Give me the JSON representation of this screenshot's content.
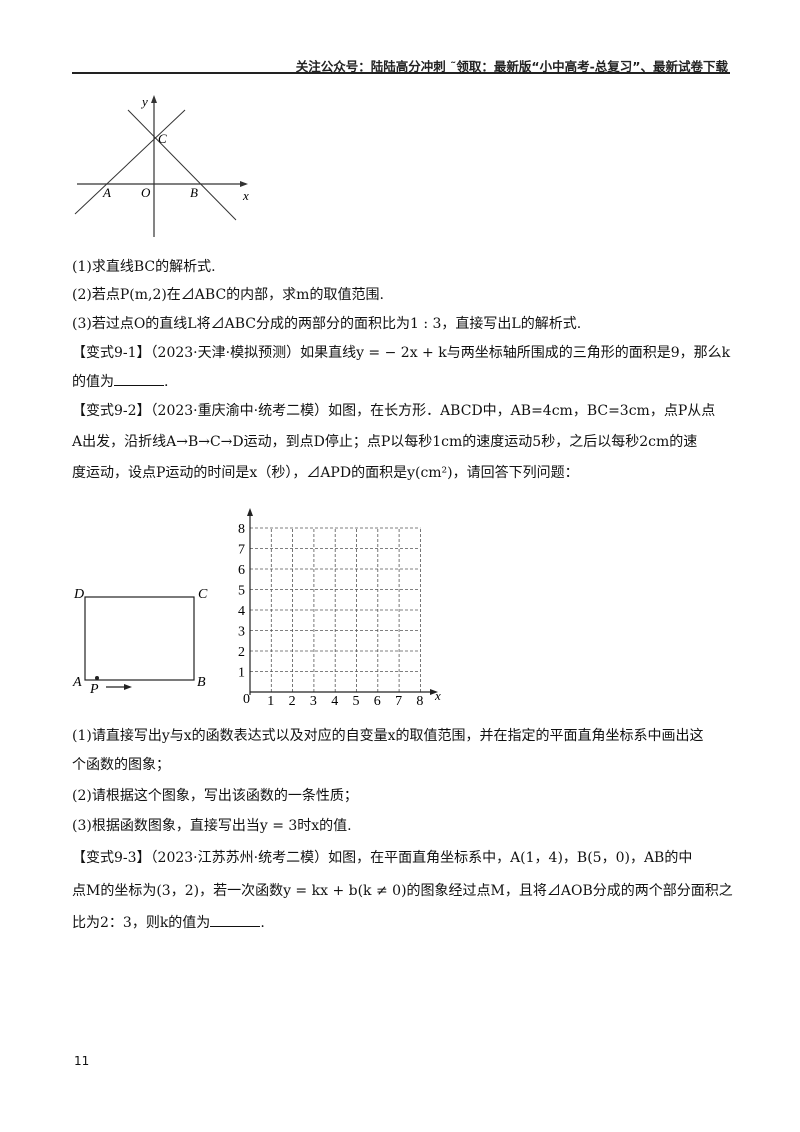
{
  "header": {
    "text": "关注公众号：陆陆高分冲刺 ˜领取：最新版“小中高考-总复习”、最新试卷下载"
  },
  "figure1": {
    "labels": {
      "y": "y",
      "x": "x",
      "C": "C",
      "A": "A",
      "O": "O",
      "B": "B"
    }
  },
  "questions1": [
    "(1)求直线BC的解析式.",
    "(2)若点P(m,2)在⊿ABC的内部，求m的取值范围.",
    "(3)若过点O的直线L将⊿ABC分成的两部分的面积比为1 : 3，直接写出L的解析式."
  ],
  "variant91": {
    "line1": "【变式9-1】（2023·天津·模拟预测）如果直线y = − 2x + k与两坐标轴所围成的三角形的面积是9，那么k",
    "line2_prefix": "的值为",
    "line2_suffix": "."
  },
  "variant92": {
    "line1": "【变式9-2】（2023·重庆渝中·统考二模）如图，在长方形．ABCD中，AB=4cm，BC=3cm，点P从点",
    "line2": "A出发，沿折线A→B→C→D运动，到点D停止；点P以每秒1cm的速度运动5秒，之后以每秒2cm的速",
    "line3": "度运动，设点P运动的时间是x（秒），⊿APD的面积是y(cm²)，请回答下列问题："
  },
  "figure2": {
    "rect_labels": {
      "D": "D",
      "C": "C",
      "A": "A",
      "B": "B",
      "P": "P"
    },
    "grid": {
      "origin": "0",
      "x_label": "x",
      "x_ticks": [
        "1",
        "2",
        "3",
        "4",
        "5",
        "6",
        "7",
        "8"
      ],
      "y_ticks": [
        "1",
        "2",
        "3",
        "4",
        "5",
        "6",
        "7",
        "8"
      ]
    }
  },
  "questions2": [
    "(1)请直接写出y与x的函数表达式以及对应的自变量x的取值范围，并在指定的平面直角坐标系中画出这",
    "个函数的图象；",
    "(2)请根据这个图象，写出该函数的一条性质；",
    "(3)根据函数图象，直接写出当y = 3时x的值."
  ],
  "variant93": {
    "line1": "【变式9-3】（2023·江苏苏州·统考二模）如图，在平面直角坐标系中，A(1，4)，B(5，0)，AB的中",
    "line2": "点M的坐标为(3，2)，若一次函数y = kx + b(k ≠ 0)的图象经过点M，且将⊿AOB分成的两个部分面积之",
    "line3_prefix": "比为2：3，则k的值为",
    "line3_suffix": "."
  },
  "page_number": "11"
}
